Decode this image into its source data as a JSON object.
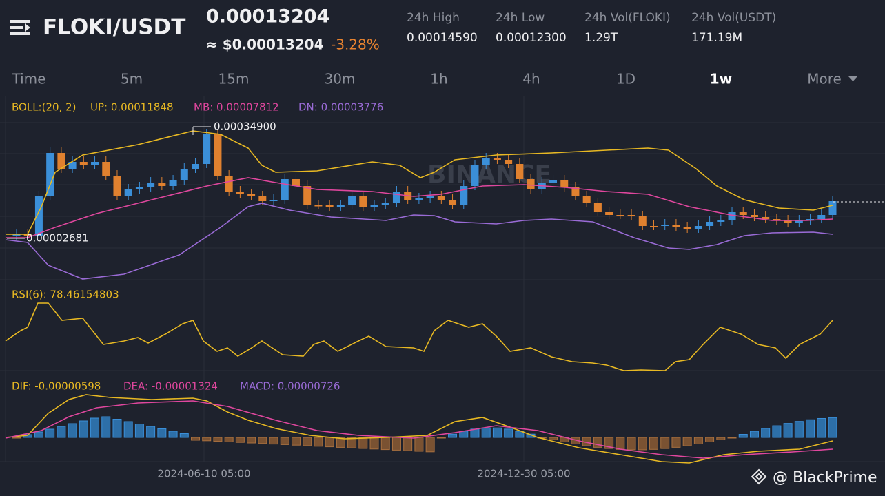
{
  "header": {
    "pair": "FLOKI/USDT",
    "price": "0.00013204",
    "usd_price": "≈ $0.00013204",
    "change": "-3.28%",
    "stats": [
      {
        "label": "24h High",
        "value": "0.00014590"
      },
      {
        "label": "24h Low",
        "value": "0.00012300"
      },
      {
        "label": "24h Vol(FLOKI)",
        "value": "1.29T"
      },
      {
        "label": "24h Vol(USDT)",
        "value": "171.19M"
      }
    ]
  },
  "tabs": [
    "Time",
    "5m",
    "15m",
    "30m",
    "1h",
    "4h",
    "1D",
    "1w",
    "More"
  ],
  "active_tab": 7,
  "boll": {
    "label": "BOLL:(20, 2)",
    "up": "UP: 0.00011848",
    "mb": "MB: 0.00007812",
    "dn": "DN: 0.00003776"
  },
  "price_max_label": "0.00034900",
  "price_min_label": "0.00002681",
  "rsi": {
    "label": "RSI(6): 78.46154803"
  },
  "macd": {
    "dif": "DIF: -0.00000598",
    "dea": "DEA: -0.00001324",
    "macd": "MACD: 0.00000726"
  },
  "x_labels": [
    "2024-06-10 05:00",
    "2024-12-30 05:00"
  ],
  "watermark": "BINANCE",
  "credit": "@ BlackPrime"
}
